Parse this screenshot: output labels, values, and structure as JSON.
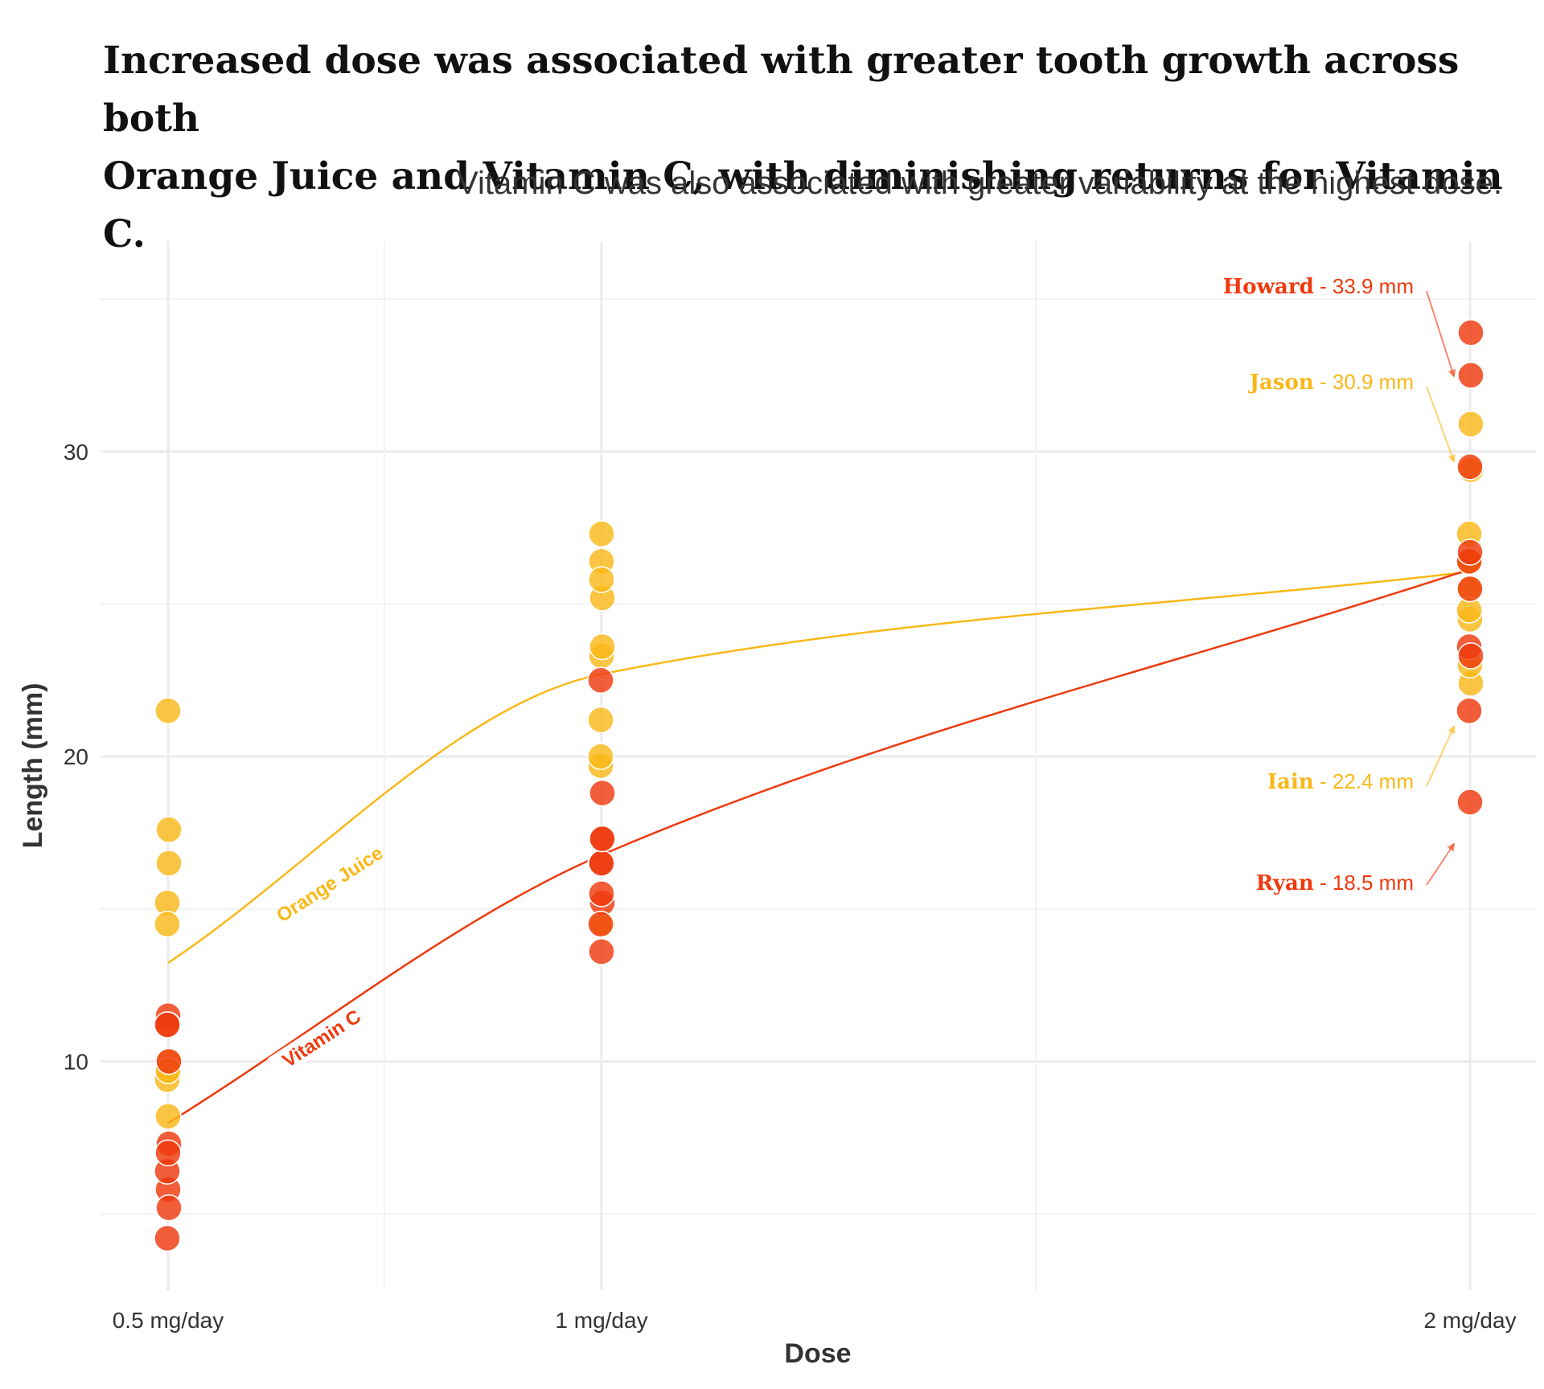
{
  "chart_data": {
    "type": "scatter",
    "title_lines": [
      "Increased dose was associated with greater tooth growth across both",
      "Orange Juice and Vitamin C, with diminishing returns for Vitamin C."
    ],
    "subtitle": "Vitamin C was also associated with greater variability at the highest dose.",
    "xlabel": "Dose",
    "ylabel": "Length (mm)",
    "categories": [
      "0.5 mg/day",
      "1 mg/day",
      "2 mg/day"
    ],
    "yticks": [
      10,
      20,
      30
    ],
    "ylim": [
      2.5,
      36.9
    ],
    "grid": true,
    "colors": {
      "orange_juice": "#F9B818",
      "vitamin_c": "#EE3A0E"
    },
    "series": [
      {
        "name": "Orange Juice",
        "color": "#F9B818",
        "values": [
          [
            15.2,
            21.5,
            17.6,
            9.7,
            14.5,
            10.0,
            8.2,
            9.4,
            16.5,
            9.7
          ],
          [
            19.7,
            23.3,
            23.6,
            26.4,
            20.0,
            25.2,
            25.8,
            21.2,
            14.5,
            27.3
          ],
          [
            25.5,
            26.4,
            22.4,
            24.5,
            24.8,
            30.9,
            26.4,
            27.3,
            29.4,
            23.0
          ]
        ],
        "trend": [
          13.23,
          22.7,
          26.06
        ]
      },
      {
        "name": "Vitamin C",
        "color": "#EE3A0E",
        "values": [
          [
            4.2,
            11.5,
            7.3,
            5.8,
            6.4,
            10.0,
            11.2,
            11.2,
            5.2,
            7.0
          ],
          [
            16.5,
            16.5,
            15.2,
            17.3,
            22.5,
            17.3,
            13.6,
            14.5,
            18.8,
            15.5
          ],
          [
            23.6,
            18.5,
            33.9,
            25.5,
            26.4,
            32.5,
            26.7,
            21.5,
            23.3,
            29.5
          ]
        ],
        "trend": [
          7.98,
          16.77,
          26.14
        ]
      }
    ],
    "trend_labels": [
      "Orange Juice",
      "Vitamin C"
    ],
    "annotations": [
      {
        "name": "Howard",
        "value": " - 33.9 mm",
        "series": "Vitamin C",
        "y": 33.9
      },
      {
        "name": "Jason",
        "value": " - 30.9 mm",
        "series": "Orange Juice",
        "y": 30.9
      },
      {
        "name": "Iain",
        "value": " - 22.4 mm",
        "series": "Orange Juice",
        "y": 22.4
      },
      {
        "name": "Ryan",
        "value": " - 18.5 mm",
        "series": "Vitamin C",
        "y": 18.5
      }
    ]
  }
}
